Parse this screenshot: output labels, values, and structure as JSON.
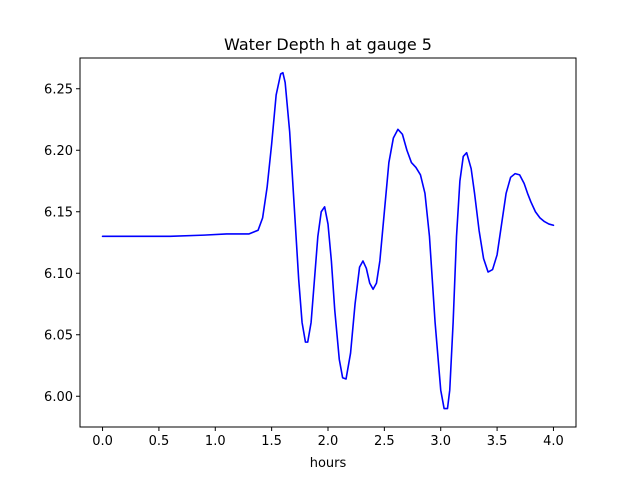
{
  "chart_data": {
    "type": "line",
    "title": "Water Depth h at gauge 5",
    "xlabel": "hours",
    "ylabel": "",
    "xlim": [
      -0.2,
      4.2
    ],
    "ylim": [
      5.975,
      6.275
    ],
    "grid": false,
    "legend": "none",
    "x_ticks": [
      0.0,
      0.5,
      1.0,
      1.5,
      2.0,
      2.5,
      3.0,
      3.5,
      4.0
    ],
    "x_tick_labels": [
      "0.0",
      "0.5",
      "1.0",
      "1.5",
      "2.0",
      "2.5",
      "3.0",
      "3.5",
      "4.0"
    ],
    "y_ticks": [
      6.0,
      6.05,
      6.1,
      6.15,
      6.2,
      6.25
    ],
    "y_tick_labels": [
      "6.00",
      "6.05",
      "6.10",
      "6.15",
      "6.20",
      "6.25"
    ],
    "series": [
      {
        "color": "#0000ff",
        "x": [
          0.0,
          0.3,
          0.6,
          0.9,
          1.1,
          1.3,
          1.38,
          1.42,
          1.46,
          1.5,
          1.54,
          1.58,
          1.6,
          1.62,
          1.66,
          1.7,
          1.74,
          1.77,
          1.8,
          1.82,
          1.85,
          1.88,
          1.91,
          1.94,
          1.97,
          2.0,
          2.03,
          2.06,
          2.1,
          2.13,
          2.16,
          2.2,
          2.24,
          2.28,
          2.31,
          2.34,
          2.37,
          2.4,
          2.43,
          2.46,
          2.5,
          2.54,
          2.58,
          2.62,
          2.66,
          2.7,
          2.74,
          2.78,
          2.82,
          2.86,
          2.9,
          2.95,
          3.0,
          3.03,
          3.06,
          3.08,
          3.11,
          3.14,
          3.17,
          3.2,
          3.23,
          3.27,
          3.3,
          3.34,
          3.38,
          3.42,
          3.46,
          3.5,
          3.54,
          3.58,
          3.62,
          3.66,
          3.7,
          3.74,
          3.77,
          3.8,
          3.84,
          3.88,
          3.92,
          3.96,
          4.0
        ],
        "y": [
          6.13,
          6.13,
          6.13,
          6.131,
          6.132,
          6.132,
          6.135,
          6.145,
          6.17,
          6.205,
          6.245,
          6.262,
          6.263,
          6.255,
          6.215,
          6.155,
          6.095,
          6.06,
          6.044,
          6.044,
          6.06,
          6.095,
          6.13,
          6.15,
          6.154,
          6.14,
          6.11,
          6.07,
          6.03,
          6.015,
          6.014,
          6.035,
          6.075,
          6.105,
          6.11,
          6.104,
          6.092,
          6.087,
          6.092,
          6.11,
          6.15,
          6.19,
          6.21,
          6.217,
          6.213,
          6.2,
          6.19,
          6.186,
          6.18,
          6.165,
          6.13,
          6.06,
          6.005,
          5.99,
          5.99,
          6.005,
          6.06,
          6.13,
          6.175,
          6.195,
          6.198,
          6.185,
          6.165,
          6.135,
          6.112,
          6.101,
          6.103,
          6.115,
          6.14,
          6.165,
          6.178,
          6.181,
          6.18,
          6.173,
          6.165,
          6.158,
          6.15,
          6.145,
          6.142,
          6.14,
          6.139
        ]
      }
    ]
  }
}
